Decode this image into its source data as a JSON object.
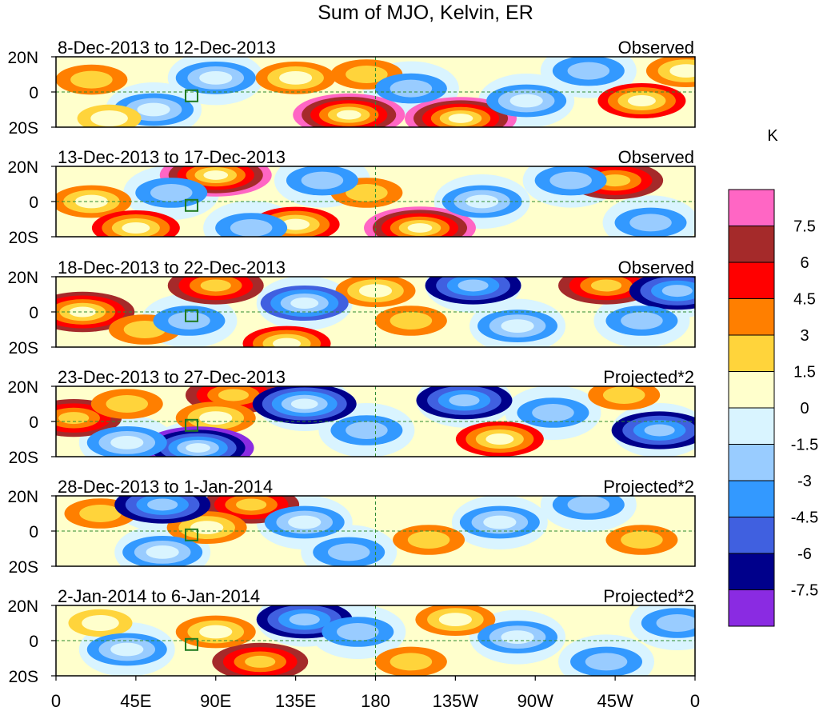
{
  "chart_data": {
    "type": "heatmap",
    "title": "Sum of MJO, Kelvin, ER",
    "units": "K",
    "x_ticks": [
      "0",
      "45E",
      "90E",
      "135E",
      "180",
      "135W",
      "90W",
      "45W",
      "0"
    ],
    "x_tick_degrees": [
      0,
      45,
      90,
      135,
      180,
      225,
      270,
      315,
      360
    ],
    "y_ticks": [
      "20N",
      "0",
      "20S"
    ],
    "y_tick_degrees": [
      20,
      0,
      -20
    ],
    "lat_range": [
      -20,
      20
    ],
    "lon_range": [
      0,
      360
    ],
    "colorbar": {
      "label": "K",
      "levels": [
        "7.5",
        "6",
        "4.5",
        "3",
        "1.5",
        "0",
        "-1.5",
        "-3",
        "-4.5",
        "-6",
        "-7.5"
      ],
      "colors": [
        "#ff66c4",
        "#a52a2a",
        "#ff0000",
        "#ff7f00",
        "#ffd43b",
        "#ffffcc",
        "#d9f4ff",
        "#99ccff",
        "#3399ff",
        "#4060e0",
        "#00008b",
        "#8a2be2"
      ]
    },
    "panels": [
      {
        "date_range": "8-Dec-2013 to 12-Dec-2013",
        "label": "Observed",
        "anomalies": [
          {
            "lon": 165,
            "lat": -13,
            "value": 8
          },
          {
            "lon": 228,
            "lat": -15,
            "value": 8
          },
          {
            "lon": 20,
            "lat": 7,
            "value": 3
          },
          {
            "lon": 135,
            "lat": 8,
            "value": 4
          },
          {
            "lon": 175,
            "lat": 10,
            "value": 3
          },
          {
            "lon": 330,
            "lat": -5,
            "value": 5
          },
          {
            "lon": 355,
            "lat": 12,
            "value": 4
          },
          {
            "lon": 55,
            "lat": -10,
            "value": -4
          },
          {
            "lon": 90,
            "lat": 8,
            "value": -4
          },
          {
            "lon": 200,
            "lat": 2,
            "value": -3
          },
          {
            "lon": 265,
            "lat": -5,
            "value": -4
          },
          {
            "lon": 300,
            "lat": 12,
            "value": -3
          },
          {
            "lon": 30,
            "lat": -15,
            "value": 2
          }
        ]
      },
      {
        "date_range": "13-Dec-2013 to 17-Dec-2013",
        "label": "Observed",
        "anomalies": [
          {
            "lon": 90,
            "lat": 15,
            "value": 8
          },
          {
            "lon": 205,
            "lat": -15,
            "value": 8
          },
          {
            "lon": 135,
            "lat": -13,
            "value": 5
          },
          {
            "lon": 20,
            "lat": 0,
            "value": 4
          },
          {
            "lon": 45,
            "lat": -15,
            "value": 5
          },
          {
            "lon": 315,
            "lat": 12,
            "value": 6
          },
          {
            "lon": 175,
            "lat": 5,
            "value": 3
          },
          {
            "lon": 65,
            "lat": 5,
            "value": -3
          },
          {
            "lon": 150,
            "lat": 12,
            "value": -3
          },
          {
            "lon": 240,
            "lat": 0,
            "value": -4
          },
          {
            "lon": 290,
            "lat": 12,
            "value": -3
          },
          {
            "lon": 335,
            "lat": -12,
            "value": -3
          },
          {
            "lon": 110,
            "lat": -15,
            "value": -3
          }
        ]
      },
      {
        "date_range": "18-Dec-2013 to 22-Dec-2013",
        "label": "Observed",
        "anomalies": [
          {
            "lon": 15,
            "lat": 0,
            "value": 7
          },
          {
            "lon": 90,
            "lat": 15,
            "value": 6
          },
          {
            "lon": 180,
            "lat": 12,
            "value": 4
          },
          {
            "lon": 310,
            "lat": 15,
            "value": 6
          },
          {
            "lon": 130,
            "lat": -18,
            "value": 5
          },
          {
            "lon": 50,
            "lat": -10,
            "value": 3
          },
          {
            "lon": 200,
            "lat": -5,
            "value": 3
          },
          {
            "lon": 140,
            "lat": 5,
            "value": -5
          },
          {
            "lon": 235,
            "lat": 15,
            "value": -6
          },
          {
            "lon": 350,
            "lat": 12,
            "value": -6
          },
          {
            "lon": 75,
            "lat": -5,
            "value": -3
          },
          {
            "lon": 260,
            "lat": -8,
            "value": -4
          },
          {
            "lon": 330,
            "lat": -5,
            "value": -3
          }
        ]
      },
      {
        "date_range": "23-Dec-2013 to 27-Dec-2013",
        "label": "Projected*2",
        "anomalies": [
          {
            "lon": 10,
            "lat": 2,
            "value": 6
          },
          {
            "lon": 100,
            "lat": 15,
            "value": 6
          },
          {
            "lon": 90,
            "lat": 2,
            "value": 4
          },
          {
            "lon": 250,
            "lat": -10,
            "value": 5
          },
          {
            "lon": 40,
            "lat": 10,
            "value": 3
          },
          {
            "lon": 320,
            "lat": 15,
            "value": 3
          },
          {
            "lon": 80,
            "lat": -15,
            "value": -8
          },
          {
            "lon": 140,
            "lat": 10,
            "value": -7
          },
          {
            "lon": 230,
            "lat": 12,
            "value": -6
          },
          {
            "lon": 340,
            "lat": -5,
            "value": -6
          },
          {
            "lon": 40,
            "lat": -12,
            "value": -4
          },
          {
            "lon": 175,
            "lat": -5,
            "value": -3
          },
          {
            "lon": 280,
            "lat": 5,
            "value": -3
          }
        ]
      },
      {
        "date_range": "28-Dec-2013 to 1-Jan-2014",
        "label": "Projected*2",
        "anomalies": [
          {
            "lon": 110,
            "lat": 15,
            "value": 6
          },
          {
            "lon": 85,
            "lat": 2,
            "value": 4
          },
          {
            "lon": 25,
            "lat": 10,
            "value": 3
          },
          {
            "lon": 210,
            "lat": -5,
            "value": 3
          },
          {
            "lon": 330,
            "lat": -5,
            "value": 3
          },
          {
            "lon": 60,
            "lat": 15,
            "value": -6
          },
          {
            "lon": 60,
            "lat": -12,
            "value": -4
          },
          {
            "lon": 140,
            "lat": 5,
            "value": -4
          },
          {
            "lon": 250,
            "lat": 5,
            "value": -4
          },
          {
            "lon": 300,
            "lat": 15,
            "value": -3
          },
          {
            "lon": 165,
            "lat": -12,
            "value": -3
          }
        ]
      },
      {
        "date_range": "2-Jan-2014 to 6-Jan-2014",
        "label": "Projected*2",
        "anomalies": [
          {
            "lon": 115,
            "lat": -12,
            "value": 6
          },
          {
            "lon": 90,
            "lat": 5,
            "value": 4
          },
          {
            "lon": 225,
            "lat": 12,
            "value": 4
          },
          {
            "lon": 200,
            "lat": -12,
            "value": 3
          },
          {
            "lon": 25,
            "lat": 10,
            "value": 2
          },
          {
            "lon": 140,
            "lat": 12,
            "value": -6
          },
          {
            "lon": 40,
            "lat": -5,
            "value": -4
          },
          {
            "lon": 260,
            "lat": 2,
            "value": -4
          },
          {
            "lon": 170,
            "lat": 5,
            "value": -3
          },
          {
            "lon": 310,
            "lat": -12,
            "value": -3
          },
          {
            "lon": 350,
            "lat": 10,
            "value": -3
          }
        ]
      }
    ]
  }
}
